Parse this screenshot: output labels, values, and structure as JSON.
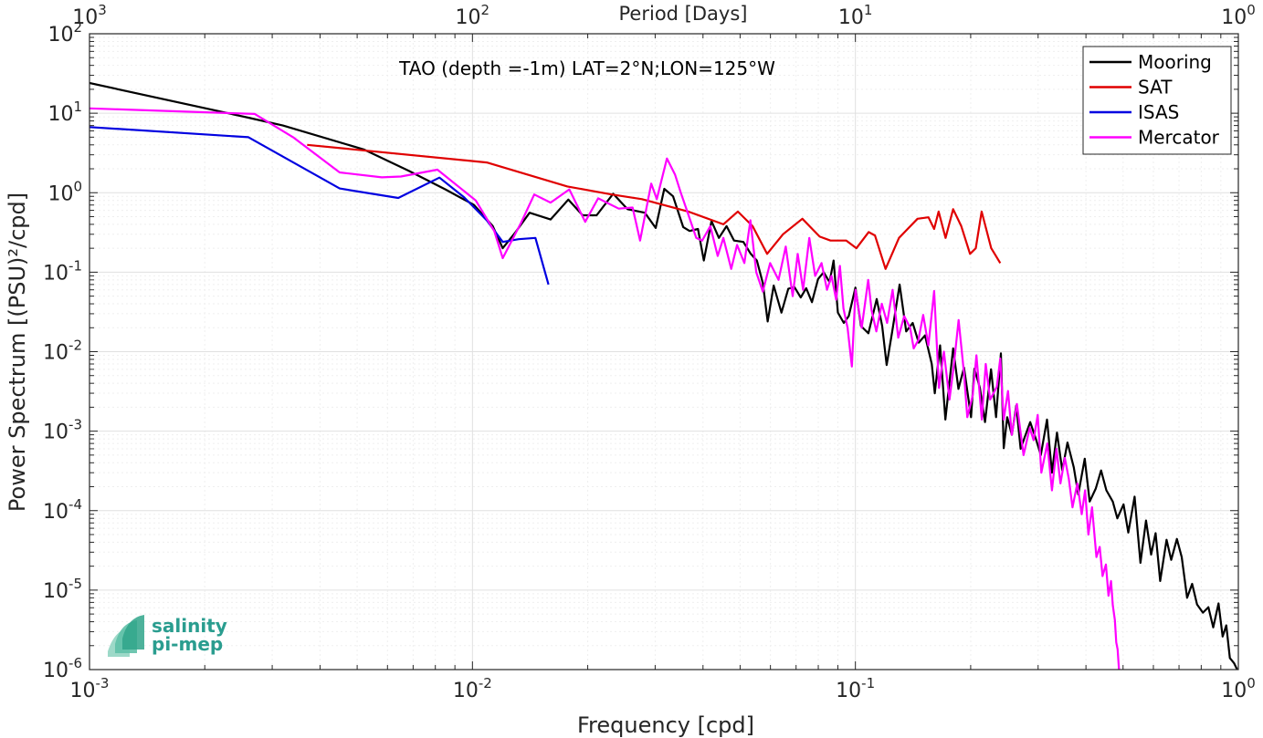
{
  "logo": {
    "line1": "salinity",
    "line2": "pi-mep"
  },
  "chart_data": {
    "type": "line",
    "title": "TAO (depth =-1m) LAT=2°N;LON=125°W",
    "xlabel": "Frequency [cpd]",
    "ylabel": "Power Spectrum [(PSU)²/cpd]",
    "top_xlabel": "Period [Days]",
    "xscale": "log",
    "yscale": "log",
    "xlim": [
      0.001,
      1
    ],
    "ylim": [
      1e-06,
      100
    ],
    "grid": true,
    "legend_position": "top-right",
    "x_ticks": [
      {
        "v": 0.001,
        "base": "10",
        "exp": "-3"
      },
      {
        "v": 0.01,
        "base": "10",
        "exp": "-2"
      },
      {
        "v": 0.1,
        "base": "10",
        "exp": "-1"
      },
      {
        "v": 1,
        "base": "10",
        "exp": "0"
      }
    ],
    "top_ticks": [
      {
        "v": 0.001,
        "base": "10",
        "exp": "3"
      },
      {
        "v": 0.01,
        "base": "10",
        "exp": "2"
      },
      {
        "v": 0.1,
        "base": "10",
        "exp": "1"
      },
      {
        "v": 1,
        "base": "10",
        "exp": "0"
      }
    ],
    "y_ticks": [
      {
        "v": 100,
        "base": "10",
        "exp": "2"
      },
      {
        "v": 10,
        "base": "10",
        "exp": "1"
      },
      {
        "v": 1,
        "base": "10",
        "exp": "0"
      },
      {
        "v": 0.1,
        "base": "10",
        "exp": "-1"
      },
      {
        "v": 0.01,
        "base": "10",
        "exp": "-2"
      },
      {
        "v": 0.001,
        "base": "10",
        "exp": "-3"
      },
      {
        "v": 0.0001,
        "base": "10",
        "exp": "-4"
      },
      {
        "v": 1e-05,
        "base": "10",
        "exp": "-5"
      },
      {
        "v": 1e-06,
        "base": "10",
        "exp": "-6"
      }
    ],
    "series": [
      {
        "name": "Mooring",
        "color": "#000000",
        "points": [
          [
            0.001,
            24
          ],
          [
            0.0026,
            8.8
          ],
          [
            0.0032,
            7
          ],
          [
            0.0052,
            3.5
          ],
          [
            0.0068,
            1.9
          ],
          [
            0.0085,
            1.1
          ],
          [
            0.0101,
            0.7
          ],
          [
            0.0113,
            0.38
          ],
          [
            0.012,
            0.2
          ],
          [
            0.0129,
            0.31
          ],
          [
            0.0141,
            0.56
          ],
          [
            0.016,
            0.46
          ],
          [
            0.0178,
            0.82
          ],
          [
            0.0194,
            0.52
          ],
          [
            0.0211,
            0.52
          ],
          [
            0.0233,
            0.97
          ],
          [
            0.0254,
            0.62
          ],
          [
            0.0282,
            0.56
          ],
          [
            0.0301,
            0.36
          ],
          [
            0.0317,
            1.12
          ],
          [
            0.0334,
            0.9
          ],
          [
            0.0355,
            0.37
          ],
          [
            0.0369,
            0.33
          ],
          [
            0.0388,
            0.35
          ],
          [
            0.0402,
            0.14
          ],
          [
            0.0421,
            0.44
          ],
          [
            0.044,
            0.27
          ],
          [
            0.0461,
            0.38
          ],
          [
            0.0482,
            0.25
          ],
          [
            0.051,
            0.24
          ],
          [
            0.0533,
            0.17
          ],
          [
            0.0553,
            0.14
          ],
          [
            0.0573,
            0.073
          ],
          [
            0.059,
            0.024
          ],
          [
            0.0612,
            0.068
          ],
          [
            0.0641,
            0.031
          ],
          [
            0.0668,
            0.062
          ],
          [
            0.0693,
            0.065
          ],
          [
            0.072,
            0.048
          ],
          [
            0.0744,
            0.063
          ],
          [
            0.077,
            0.042
          ],
          [
            0.0799,
            0.082
          ],
          [
            0.0826,
            0.1
          ],
          [
            0.0856,
            0.075
          ],
          [
            0.0877,
            0.14
          ],
          [
            0.09,
            0.031
          ],
          [
            0.0933,
            0.023
          ],
          [
            0.0961,
            0.028
          ],
          [
            0.1,
            0.064
          ],
          [
            0.1034,
            0.021
          ],
          [
            0.1081,
            0.017
          ],
          [
            0.1137,
            0.046
          ],
          [
            0.1175,
            0.021
          ],
          [
            0.1207,
            0.0068
          ],
          [
            0.1248,
            0.018
          ],
          [
            0.1305,
            0.07
          ],
          [
            0.1357,
            0.018
          ],
          [
            0.1411,
            0.023
          ],
          [
            0.1463,
            0.013
          ],
          [
            0.152,
            0.016
          ],
          [
            0.1583,
            0.007
          ],
          [
            0.1612,
            0.003
          ],
          [
            0.1664,
            0.012
          ],
          [
            0.1718,
            0.0014
          ],
          [
            0.18,
            0.011
          ],
          [
            0.1858,
            0.0034
          ],
          [
            0.1921,
            0.0063
          ],
          [
            0.2004,
            0.0015
          ],
          [
            0.2046,
            0.0061
          ],
          [
            0.2114,
            0.0035
          ],
          [
            0.218,
            0.0013
          ],
          [
            0.226,
            0.006
          ],
          [
            0.233,
            0.0015
          ],
          [
            0.2398,
            0.0095
          ],
          [
            0.244,
            0.00061
          ],
          [
            0.2491,
            0.0015
          ],
          [
            0.2562,
            0.0009
          ],
          [
            0.263,
            0.0021
          ],
          [
            0.27,
            0.0006
          ],
          [
            0.277,
            0.00085
          ],
          [
            0.2861,
            0.0013
          ],
          [
            0.296,
            0.0008
          ],
          [
            0.305,
            0.0005
          ],
          [
            0.3165,
            0.0014
          ],
          [
            0.3261,
            0.0003
          ],
          [
            0.3361,
            0.00096
          ],
          [
            0.347,
            0.00032
          ],
          [
            0.358,
            0.00072
          ],
          [
            0.3718,
            0.00035
          ],
          [
            0.382,
            0.00016
          ],
          [
            0.397,
            0.00045
          ],
          [
            0.409,
            0.00013
          ],
          [
            0.4244,
            0.00019
          ],
          [
            0.438,
            0.00032
          ],
          [
            0.4522,
            0.00018
          ],
          [
            0.47,
            0.00013
          ],
          [
            0.483,
            8e-05
          ],
          [
            0.5015,
            0.00012
          ],
          [
            0.516,
            5.3e-05
          ],
          [
            0.536,
            0.00015
          ],
          [
            0.5552,
            2.2e-05
          ],
          [
            0.574,
            7.5e-05
          ],
          [
            0.592,
            2.8e-05
          ],
          [
            0.6081,
            5.2e-05
          ],
          [
            0.625,
            1.3e-05
          ],
          [
            0.6494,
            4.3e-05
          ],
          [
            0.668,
            2.4e-05
          ],
          [
            0.691,
            4.4e-05
          ],
          [
            0.7113,
            2.6e-05
          ],
          [
            0.735,
            8e-06
          ],
          [
            0.7573,
            1.2e-05
          ],
          [
            0.78,
            6.6e-06
          ],
          [
            0.8083,
            5.2e-06
          ],
          [
            0.8353,
            6.1e-06
          ],
          [
            0.86,
            3.4e-06
          ],
          [
            0.8876,
            6.8e-06
          ],
          [
            0.91,
            2.6e-06
          ],
          [
            0.93,
            3.6e-06
          ],
          [
            0.95,
            1.4e-06
          ],
          [
            0.975,
            1.2e-06
          ],
          [
            0.993,
            1e-06
          ]
        ]
      },
      {
        "name": "SAT",
        "color": "#e00000",
        "points": [
          [
            0.0037,
            4
          ],
          [
            0.0109,
            2.4
          ],
          [
            0.0177,
            1.2
          ],
          [
            0.0231,
            0.95
          ],
          [
            0.0277,
            0.83
          ],
          [
            0.0366,
            0.58
          ],
          [
            0.0452,
            0.4
          ],
          [
            0.0493,
            0.58
          ],
          [
            0.0539,
            0.38
          ],
          [
            0.0588,
            0.17
          ],
          [
            0.0647,
            0.3
          ],
          [
            0.0727,
            0.47
          ],
          [
            0.0807,
            0.28
          ],
          [
            0.0861,
            0.25
          ],
          [
            0.0947,
            0.25
          ],
          [
            0.1006,
            0.2
          ],
          [
            0.1083,
            0.32
          ],
          [
            0.1125,
            0.29
          ],
          [
            0.1199,
            0.11
          ],
          [
            0.13,
            0.27
          ],
          [
            0.1453,
            0.47
          ],
          [
            0.1552,
            0.49
          ],
          [
            0.1606,
            0.35
          ],
          [
            0.1649,
            0.58
          ],
          [
            0.172,
            0.27
          ],
          [
            0.18,
            0.62
          ],
          [
            0.189,
            0.38
          ],
          [
            0.1992,
            0.17
          ],
          [
            0.2063,
            0.2
          ],
          [
            0.2136,
            0.58
          ],
          [
            0.2263,
            0.2
          ],
          [
            0.2389,
            0.13
          ]
        ]
      },
      {
        "name": "ISAS",
        "color": "#0000e0",
        "points": [
          [
            0.001,
            6.7
          ],
          [
            0.0026,
            5
          ],
          [
            0.0045,
            1.13
          ],
          [
            0.0064,
            0.86
          ],
          [
            0.0082,
            1.55
          ],
          [
            0.0095,
            0.88
          ],
          [
            0.0109,
            0.45
          ],
          [
            0.012,
            0.24
          ],
          [
            0.0132,
            0.26
          ],
          [
            0.0146,
            0.27
          ],
          [
            0.0158,
            0.07
          ]
        ]
      },
      {
        "name": "Mercator",
        "color": "#ff00ff",
        "points": [
          [
            0.001,
            11.5
          ],
          [
            0.0027,
            9.8
          ],
          [
            0.0034,
            5
          ],
          [
            0.0045,
            1.8
          ],
          [
            0.0058,
            1.56
          ],
          [
            0.0065,
            1.6
          ],
          [
            0.0081,
            1.95
          ],
          [
            0.0102,
            0.8
          ],
          [
            0.0114,
            0.33
          ],
          [
            0.012,
            0.15
          ],
          [
            0.0134,
            0.42
          ],
          [
            0.0145,
            0.95
          ],
          [
            0.016,
            0.75
          ],
          [
            0.0179,
            1.1
          ],
          [
            0.0197,
            0.43
          ],
          [
            0.0213,
            0.85
          ],
          [
            0.0241,
            0.63
          ],
          [
            0.0262,
            0.65
          ],
          [
            0.0274,
            0.25
          ],
          [
            0.0293,
            1.3
          ],
          [
            0.0303,
            0.83
          ],
          [
            0.0322,
            2.7
          ],
          [
            0.0338,
            1.7
          ],
          [
            0.035,
            1.0
          ],
          [
            0.0364,
            0.58
          ],
          [
            0.0384,
            0.27
          ],
          [
            0.0398,
            0.25
          ],
          [
            0.0418,
            0.38
          ],
          [
            0.0437,
            0.16
          ],
          [
            0.0452,
            0.27
          ],
          [
            0.0474,
            0.11
          ],
          [
            0.0491,
            0.22
          ],
          [
            0.0513,
            0.13
          ],
          [
            0.0532,
            0.45
          ],
          [
            0.0551,
            0.1
          ],
          [
            0.0573,
            0.057
          ],
          [
            0.0599,
            0.13
          ],
          [
            0.063,
            0.08
          ],
          [
            0.0658,
            0.21
          ],
          [
            0.0686,
            0.05
          ],
          [
            0.0707,
            0.17
          ],
          [
            0.073,
            0.06
          ],
          [
            0.0758,
            0.27
          ],
          [
            0.0785,
            0.09
          ],
          [
            0.0816,
            0.13
          ],
          [
            0.0843,
            0.06
          ],
          [
            0.0866,
            0.09
          ],
          [
            0.0891,
            0.045
          ],
          [
            0.0911,
            0.12
          ],
          [
            0.0931,
            0.035
          ],
          [
            0.0954,
            0.02
          ],
          [
            0.0979,
            0.0065
          ],
          [
            0.1001,
            0.06
          ],
          [
            0.1039,
            0.02
          ],
          [
            0.108,
            0.08
          ],
          [
            0.1102,
            0.033
          ],
          [
            0.1134,
            0.018
          ],
          [
            0.1172,
            0.04
          ],
          [
            0.121,
            0.023
          ],
          [
            0.1251,
            0.06
          ],
          [
            0.1294,
            0.015
          ],
          [
            0.1341,
            0.028
          ],
          [
            0.139,
            0.02
          ],
          [
            0.142,
            0.011
          ],
          [
            0.146,
            0.014
          ],
          [
            0.1503,
            0.029
          ],
          [
            0.1551,
            0.012
          ],
          [
            0.1606,
            0.058
          ],
          [
            0.1653,
            0.0035
          ],
          [
            0.1703,
            0.01
          ],
          [
            0.1761,
            0.0025
          ],
          [
            0.1806,
            0.0065
          ],
          [
            0.186,
            0.025
          ],
          [
            0.192,
            0.0055
          ],
          [
            0.196,
            0.0015
          ],
          [
            0.2024,
            0.0028
          ],
          [
            0.207,
            0.009
          ],
          [
            0.2139,
            0.0014
          ],
          [
            0.219,
            0.007
          ],
          [
            0.2248,
            0.0025
          ],
          [
            0.234,
            0.0036
          ],
          [
            0.2389,
            0.0082
          ],
          [
            0.2439,
            0.0014
          ],
          [
            0.2503,
            0.0032
          ],
          [
            0.256,
            0.0009
          ],
          [
            0.264,
            0.0022
          ],
          [
            0.269,
            0.0011
          ],
          [
            0.2748,
            0.0005
          ],
          [
            0.2853,
            0.0011
          ],
          [
            0.292,
            0.00077
          ],
          [
            0.2992,
            0.0016
          ],
          [
            0.306,
            0.0003
          ],
          [
            0.317,
            0.0007
          ],
          [
            0.326,
            0.00018
          ],
          [
            0.335,
            0.0006
          ],
          [
            0.3431,
            0.00022
          ],
          [
            0.3523,
            0.00046
          ],
          [
            0.361,
            0.00025
          ],
          [
            0.369,
            0.00011
          ],
          [
            0.3798,
            0.00022
          ],
          [
            0.39,
            9e-05
          ],
          [
            0.398,
            0.00018
          ],
          [
            0.406,
            5e-05
          ],
          [
            0.415,
            0.00011
          ],
          [
            0.426,
            2.6e-05
          ],
          [
            0.4346,
            3.5e-05
          ],
          [
            0.442,
            1.5e-05
          ],
          [
            0.451,
            2.1e-05
          ],
          [
            0.458,
            8.5e-06
          ],
          [
            0.4652,
            1.3e-05
          ],
          [
            0.47,
            6.5e-06
          ],
          [
            0.476,
            4.2e-06
          ],
          [
            0.48,
            2.2e-06
          ],
          [
            0.484,
            1.8e-06
          ],
          [
            0.488,
            1e-06
          ]
        ]
      }
    ]
  }
}
